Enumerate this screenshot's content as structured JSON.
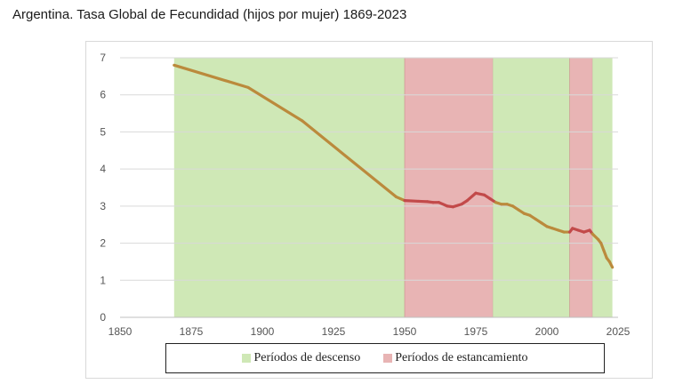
{
  "title": "Argentina. Tasa Global de Fecundidad (hijos por mujer) 1869-2023",
  "chart_data": {
    "type": "line",
    "title": "Argentina. Tasa Global de Fecundidad (hijos por mujer) 1869-2023",
    "xlabel": "",
    "ylabel": "",
    "xlim": [
      1850,
      2025
    ],
    "ylim": [
      0,
      7
    ],
    "x_ticks": [
      1850,
      1875,
      1900,
      1925,
      1950,
      1975,
      2000,
      2025
    ],
    "y_ticks": [
      0,
      1,
      2,
      3,
      4,
      5,
      6,
      7
    ],
    "grid": "horizontal",
    "legend_position": "bottom",
    "series": [
      {
        "x": [
          1869,
          1895,
          1914,
          1947,
          1950,
          1955,
          1958,
          1960,
          1962,
          1965,
          1967,
          1970,
          1972,
          1975,
          1978,
          1980,
          1982,
          1984,
          1986,
          1988,
          1990,
          1992,
          1994,
          1996,
          1998,
          2000,
          2002,
          2004,
          2006,
          2008,
          2009,
          2011,
          2013,
          2015,
          2016,
          2018,
          2019,
          2020,
          2021,
          2022,
          2023
        ],
        "values": [
          6.8,
          6.2,
          5.3,
          3.25,
          3.15,
          3.13,
          3.12,
          3.1,
          3.1,
          3.0,
          2.98,
          3.05,
          3.15,
          3.35,
          3.3,
          3.2,
          3.1,
          3.05,
          3.05,
          3.0,
          2.9,
          2.8,
          2.75,
          2.65,
          2.55,
          2.45,
          2.4,
          2.35,
          2.3,
          2.3,
          2.4,
          2.35,
          2.3,
          2.35,
          2.25,
          2.1,
          2.0,
          1.8,
          1.6,
          1.5,
          1.35
        ]
      }
    ],
    "periods": [
      {
        "type": "descenso",
        "start": 1869,
        "end": 1950
      },
      {
        "type": "estancamiento",
        "start": 1950,
        "end": 1981
      },
      {
        "type": "descenso",
        "start": 1981,
        "end": 2008
      },
      {
        "type": "estancamiento",
        "start": 2008,
        "end": 2016
      },
      {
        "type": "descenso",
        "start": 2016,
        "end": 2023
      }
    ],
    "legend": [
      {
        "label": "Períodos de descenso",
        "color": "#cfe8b6"
      },
      {
        "label": "Períodos de estancamiento",
        "color": "#e8b4b4"
      }
    ],
    "colors": {
      "descenso_fill": "#cfe8b6",
      "estancamiento_fill": "#e8b4b4",
      "line_descenso": "#bb8a3c",
      "line_estancamiento": "#c24a4a"
    }
  }
}
